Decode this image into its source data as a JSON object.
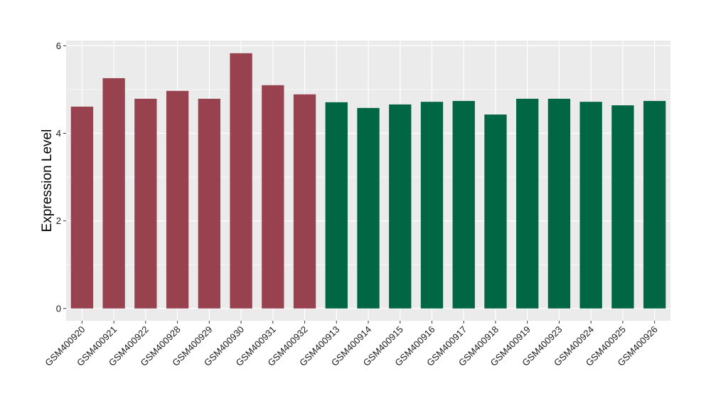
{
  "chart_data": {
    "type": "bar",
    "title": "",
    "xlabel": "",
    "ylabel": "Expression Level",
    "ylim": [
      -0.28,
      6.12
    ],
    "yticks": [
      0,
      2,
      4,
      6
    ],
    "grid": true,
    "categories": [
      "GSM400920",
      "GSM400921",
      "GSM400922",
      "GSM400928",
      "GSM400929",
      "GSM400930",
      "GSM400931",
      "GSM400932",
      "GSM400913",
      "GSM400914",
      "GSM400915",
      "GSM400916",
      "GSM400917",
      "GSM400918",
      "GSM400919",
      "GSM400923",
      "GSM400924",
      "GSM400925",
      "GSM400926"
    ],
    "values": [
      4.61,
      5.26,
      4.79,
      4.97,
      4.79,
      5.83,
      5.1,
      4.89,
      4.71,
      4.58,
      4.66,
      4.72,
      4.74,
      4.43,
      4.79,
      4.79,
      4.72,
      4.64,
      4.74
    ],
    "group_sizes": [
      8,
      11
    ],
    "colors": {
      "group1": "#99424f",
      "group2": "#006644",
      "panel_bg": "#ebebeb",
      "grid": "#ffffff"
    }
  }
}
